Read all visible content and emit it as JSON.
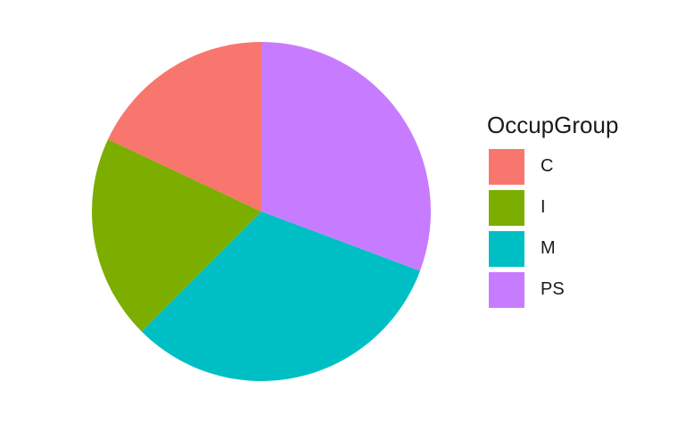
{
  "chart_data": {
    "type": "pie",
    "legend_title": "OccupGroup",
    "legend_position": "right",
    "categories": [
      "C",
      "I",
      "M",
      "PS"
    ],
    "values": [
      18,
      19.5,
      31.8,
      30.7
    ],
    "colors": [
      "#F8766D",
      "#7CAE00",
      "#00BFC4",
      "#C77CFF"
    ],
    "start_angle_direction": "clockwise from 12 o'clock, order PS, M, I, C"
  }
}
